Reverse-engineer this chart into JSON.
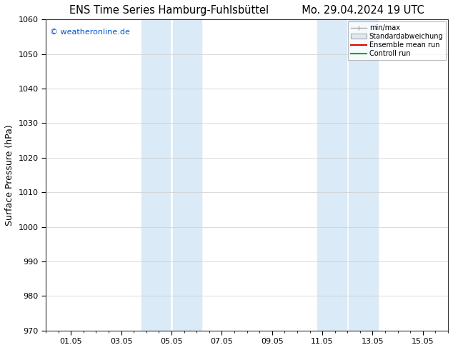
{
  "title_left": "ENS Time Series Hamburg-Fuhlsbüttel",
  "title_right": "Mo. 29.04.2024 19 UTC",
  "ylabel": "Surface Pressure (hPa)",
  "watermark": "© weatheronline.de",
  "ylim": [
    970,
    1060
  ],
  "yticks": [
    970,
    980,
    990,
    1000,
    1010,
    1020,
    1030,
    1040,
    1050,
    1060
  ],
  "xtick_labels": [
    "01.05",
    "03.05",
    "05.05",
    "07.05",
    "09.05",
    "11.05",
    "13.05",
    "15.05"
  ],
  "xtick_positions": [
    1,
    3,
    5,
    7,
    9,
    11,
    13,
    15
  ],
  "xlim": [
    0,
    16
  ],
  "shaded_regions": [
    {
      "x_start": 3.8,
      "x_end": 4.95,
      "color": "#daeaf7"
    },
    {
      "x_start": 5.05,
      "x_end": 6.2,
      "color": "#daeaf7"
    },
    {
      "x_start": 10.8,
      "x_end": 11.95,
      "color": "#daeaf7"
    },
    {
      "x_start": 12.05,
      "x_end": 13.2,
      "color": "#daeaf7"
    }
  ],
  "legend_labels": [
    "min/max",
    "Standardabweichung",
    "Ensemble mean run",
    "Controll run"
  ],
  "legend_line_colors": [
    "#aaaaaa",
    "#cccccc",
    "#dd0000",
    "#00aa00"
  ],
  "bg_color": "#ffffff",
  "grid_color": "#cccccc",
  "title_fontsize": 10.5,
  "tick_fontsize": 8,
  "watermark_color": "#0055cc",
  "watermark_fontsize": 8,
  "ylabel_fontsize": 9
}
